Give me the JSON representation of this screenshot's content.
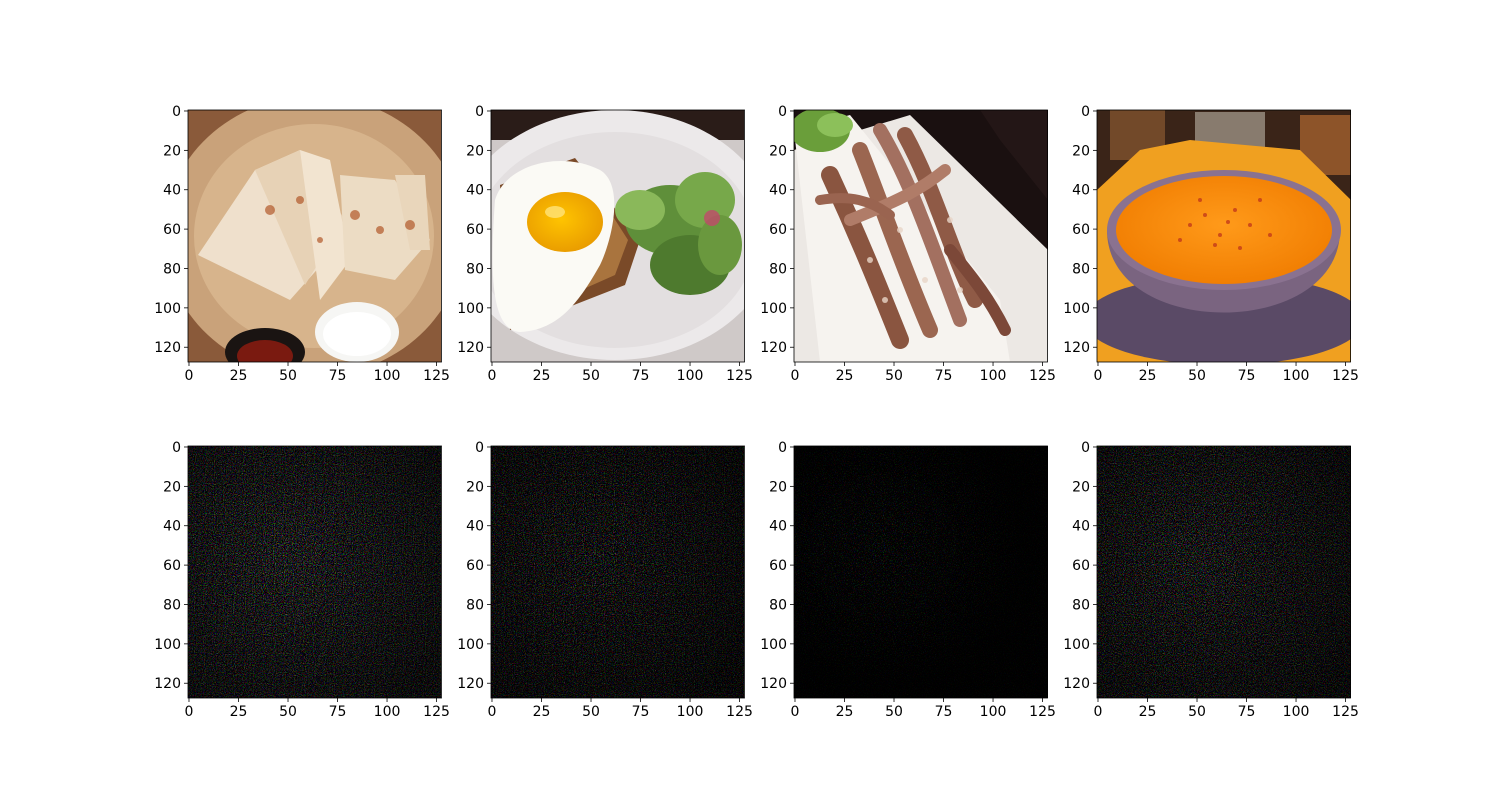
{
  "figure": {
    "layout": {
      "rows": 2,
      "cols": 4
    },
    "panels": [
      {
        "row": 0,
        "col": 0,
        "kind": "photo",
        "subject": "quesadilla slices with dipping sauces"
      },
      {
        "row": 0,
        "col": 1,
        "kind": "photo",
        "subject": "fried egg on toast with salad"
      },
      {
        "row": 0,
        "col": 2,
        "kind": "photo",
        "subject": "grilled squid on white plate"
      },
      {
        "row": 0,
        "col": 3,
        "kind": "photo",
        "subject": "bowl of orange bisque soup"
      },
      {
        "row": 1,
        "col": 0,
        "kind": "saliency-map"
      },
      {
        "row": 1,
        "col": 1,
        "kind": "saliency-map"
      },
      {
        "row": 1,
        "col": 2,
        "kind": "saliency-map"
      },
      {
        "row": 1,
        "col": 3,
        "kind": "saliency-map"
      }
    ],
    "axes": {
      "x_ticks": [
        "0",
        "25",
        "50",
        "75",
        "100",
        "125"
      ],
      "x_tick_values": [
        0,
        25,
        50,
        75,
        100,
        125
      ],
      "y_ticks": [
        "0",
        "20",
        "40",
        "60",
        "80",
        "100",
        "120"
      ],
      "y_tick_values": [
        0,
        20,
        40,
        60,
        80,
        100,
        120
      ],
      "extent": [
        0,
        128
      ]
    }
  },
  "colors": {
    "background": "#ffffff",
    "saliency_background": "#050505",
    "spine": "#000000"
  }
}
